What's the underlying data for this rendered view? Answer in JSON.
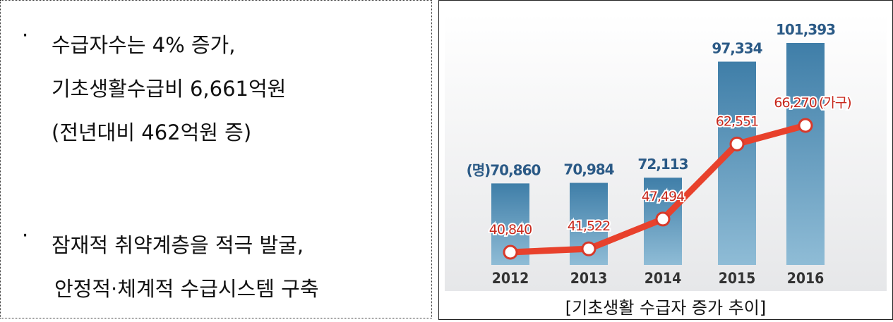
{
  "bullet_marker": "·",
  "bullets": [
    {
      "lines": [
        "수급자수는 4% 증가,",
        "기초생활수급비 6,661억원",
        "(전년대비 462억원 증)"
      ]
    },
    {
      "lines": [
        "잠재적 취약계층을 적극 발굴,",
        "안정적·체계적 수급시스템 구축"
      ]
    }
  ],
  "chart_data": {
    "type": "bar_line",
    "categories": [
      "2012",
      "2013",
      "2014",
      "2015",
      "2016"
    ],
    "bars": {
      "unit": "(명)",
      "color": "#4a8ab2",
      "values": [
        70860,
        70984,
        72113,
        97334,
        101393
      ],
      "value_labels": [
        "70,860",
        "70,984",
        "72,113",
        "97,334",
        "101,393"
      ]
    },
    "line": {
      "unit": "(가구)",
      "color": "#e8412c",
      "values": [
        40840,
        41522,
        47494,
        62551,
        66270
      ],
      "value_labels": [
        "40,840",
        "41,522",
        "47,494",
        "62,551",
        "66,270"
      ]
    },
    "caption": "[기초생활 수급자 증가 추이]"
  }
}
